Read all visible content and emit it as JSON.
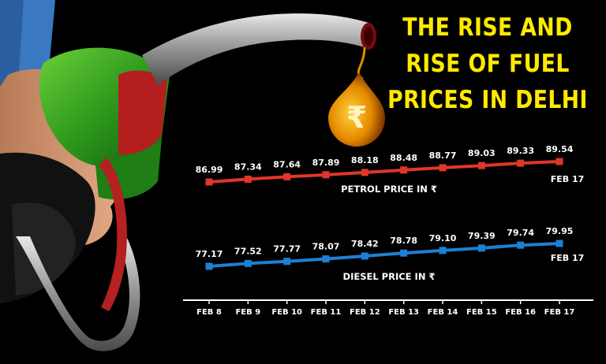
{
  "title": {
    "line1": "THE RISE AND",
    "line2": "RISE OF FUEL",
    "line3": "PRICES IN DELHI"
  },
  "rupee_symbol": "₹",
  "colors": {
    "title": "#ffea00",
    "petrol": "#e0362a",
    "diesel": "#1e7fd6",
    "text": "#ffffff",
    "background": "#000000"
  },
  "icons": [
    "fuel-nozzle-icon",
    "rupee-drop-icon"
  ],
  "chart_data": {
    "type": "line",
    "categories": [
      "FEB 8",
      "FEB 9",
      "FEB 10",
      "FEB 11",
      "FEB 12",
      "FEB 13",
      "FEB 14",
      "FEB 15",
      "FEB 16",
      "FEB 17"
    ],
    "series": [
      {
        "name": "PETROL PRICE IN ₹",
        "values": [
          86.99,
          87.34,
          87.64,
          87.89,
          88.18,
          88.48,
          88.77,
          89.03,
          89.33,
          89.54
        ],
        "end_label": "FEB 17"
      },
      {
        "name": "DIESEL PRICE IN ₹",
        "values": [
          77.17,
          77.52,
          77.77,
          78.07,
          78.42,
          78.78,
          79.1,
          79.39,
          79.74,
          79.95
        ],
        "end_label": "FEB 17"
      }
    ],
    "grid": false
  }
}
